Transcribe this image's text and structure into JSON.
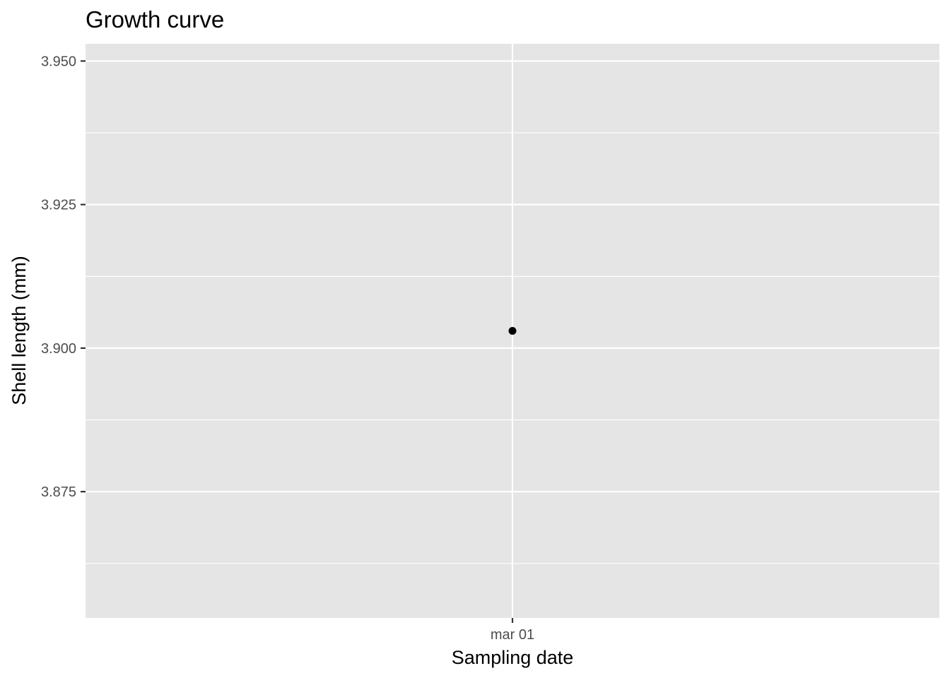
{
  "chart_data": {
    "type": "scatter",
    "title": "Growth curve",
    "xlabel": "Sampling date",
    "ylabel": "Shell length (mm)",
    "x_tick_labels": [
      "mar 01"
    ],
    "y_ticks": [
      3.875,
      3.9,
      3.925,
      3.95
    ],
    "y_tick_labels": [
      "3.875",
      "3.900",
      "3.925",
      "3.950"
    ],
    "ylim": [
      3.853,
      3.953
    ],
    "grid": true,
    "legend": "none",
    "points": [
      {
        "x": "mar 01",
        "y": 3.903
      }
    ],
    "colors": {
      "panel_background": "#e5e5e5",
      "grid": "#ffffff",
      "point": "#000000",
      "tick_label": "#4d4d4d",
      "tick_mark": "#333333"
    }
  }
}
